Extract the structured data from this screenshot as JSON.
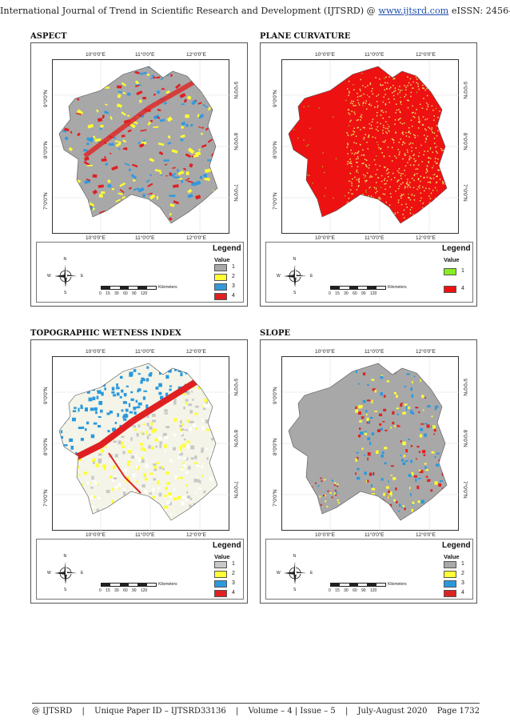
{
  "header": {
    "text_before": "International Journal of Trend in Scientific Research and Development (IJTSRD) @ ",
    "link": "www.ijtsrd.com",
    "text_after": " eISSN: 2456-6470"
  },
  "common_map": {
    "top_ticks": [
      "10°0'0\"E",
      "11°0'0\"E",
      "12°0'0\"E"
    ],
    "bottom_ticks": [
      "10°0'0\"E",
      "11°0'0\"E",
      "12°0'0\"E"
    ],
    "lat_ticks": [
      "9°0'0\"N",
      "8°0'0\"N",
      "7°0'0\"N"
    ],
    "legend_title": "Legend",
    "legend_value": "Value",
    "compass": {
      "n": "N",
      "s": "S",
      "e": "E",
      "w": "W"
    },
    "scale_unit": "Kilometers",
    "scale_numbers": "0 15 30 60 90 120"
  },
  "panels": [
    {
      "id": "aspect",
      "label": "ASPECT",
      "pattern": "aspect",
      "legend": [
        {
          "label": "1",
          "color": "#a8a8a8"
        },
        {
          "label": "2",
          "color": "#ffff33"
        },
        {
          "label": "3",
          "color": "#3399dd"
        },
        {
          "label": "4",
          "color": "#e02020"
        }
      ]
    },
    {
      "id": "plane-curvature",
      "label": "PLANE CURVATURE",
      "pattern": "curvature",
      "legend": [
        {
          "label": "1",
          "color": "#88ee22"
        },
        {
          "label": "4",
          "color": "#ee1111"
        }
      ]
    },
    {
      "id": "twi",
      "label": "TOPOGRAPHIC WETNESS INDEX",
      "pattern": "twi",
      "legend": [
        {
          "label": "1",
          "color": "#c8c8c8"
        },
        {
          "label": "2",
          "color": "#ffff33"
        },
        {
          "label": "3",
          "color": "#2a99dd"
        },
        {
          "label": "4",
          "color": "#e02020"
        }
      ]
    },
    {
      "id": "slope",
      "label": "SLOPE",
      "pattern": "slope",
      "legend": [
        {
          "label": "1",
          "color": "#a8a8a8"
        },
        {
          "label": "2",
          "color": "#ffff33"
        },
        {
          "label": "3",
          "color": "#2a99dd"
        },
        {
          "label": "4",
          "color": "#dd2222"
        }
      ]
    }
  ],
  "footer": {
    "left": "@ IJTSRD",
    "paper_id": "Unique Paper ID – IJTSRD33136",
    "volume": "Volume – 4 | Issue – 5",
    "date": "July-August 2020",
    "page": "Page 1732"
  }
}
